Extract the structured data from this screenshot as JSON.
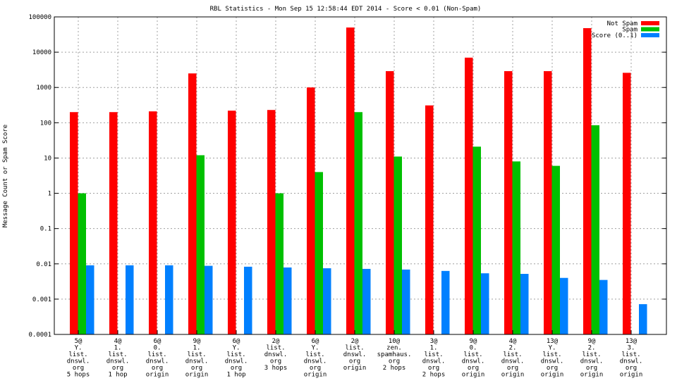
{
  "chart_data": {
    "type": "bar",
    "title": "RBL Statistics - Mon Sep 15 12:58:44 EDT 2014 - Score < 0.01 (Non-Spam)",
    "ylabel": "Message Count or Spam Score",
    "xlabel": "",
    "yscale": "log",
    "ylim": [
      0.0001,
      100000
    ],
    "yticks": [
      "0.0001",
      "0.001",
      "0.01",
      "0.1",
      "1",
      "10",
      "100",
      "1000",
      "10000",
      "100000"
    ],
    "grid": true,
    "legend_position": "top-right",
    "categories": [
      [
        "5@",
        "Y.",
        "list.",
        "dnswl.",
        "org",
        "5 hops"
      ],
      [
        "4@",
        "1.",
        "list.",
        "dnswl.",
        "org",
        "1 hop"
      ],
      [
        "6@",
        "0.",
        "list.",
        "dnswl.",
        "org",
        "origin"
      ],
      [
        "9@",
        "1.",
        "list.",
        "dnswl.",
        "org",
        "origin"
      ],
      [
        "6@",
        "Y.",
        "list.",
        "dnswl.",
        "org",
        "1 hop"
      ],
      [
        "2@",
        "list.",
        "dnswl.",
        "org",
        "3 hops"
      ],
      [
        "6@",
        "Y.",
        "list.",
        "dnswl.",
        "org",
        "origin"
      ],
      [
        "2@",
        "list.",
        "dnswl.",
        "org",
        "origin"
      ],
      [
        "10@",
        "zen.",
        "spamhaus.",
        "org",
        "2 hops"
      ],
      [
        "3@",
        "1.",
        "list.",
        "dnswl.",
        "org",
        "2 hops"
      ],
      [
        "9@",
        "0.",
        "list.",
        "dnswl.",
        "org",
        "origin"
      ],
      [
        "4@",
        "2.",
        "list.",
        "dnswl.",
        "org",
        "origin"
      ],
      [
        "13@",
        "Y.",
        "list.",
        "dnswl.",
        "org",
        "origin"
      ],
      [
        "9@",
        "2.",
        "list.",
        "dnswl.",
        "org",
        "origin"
      ],
      [
        "13@",
        "3.",
        "list.",
        "dnswl.",
        "org",
        "origin"
      ]
    ],
    "series": [
      {
        "name": "Not Spam",
        "color": "#ff0000",
        "values": [
          200,
          200,
          210,
          2500,
          220,
          230,
          1000,
          50000,
          2900,
          310,
          7000,
          2900,
          2900,
          48000,
          2600
        ]
      },
      {
        "name": "Spam",
        "color": "#00c000",
        "values": [
          1,
          0,
          0,
          12,
          0,
          1,
          4,
          200,
          11,
          0,
          21,
          8,
          6,
          85,
          0
        ]
      },
      {
        "name": "Score (0..1)",
        "color": "#0080ff",
        "values": [
          0.0091,
          0.0091,
          0.0091,
          0.0088,
          0.0083,
          0.0079,
          0.0075,
          0.0072,
          0.0069,
          0.0063,
          0.0054,
          0.0052,
          0.004,
          0.0035,
          0.00072
        ]
      }
    ]
  }
}
